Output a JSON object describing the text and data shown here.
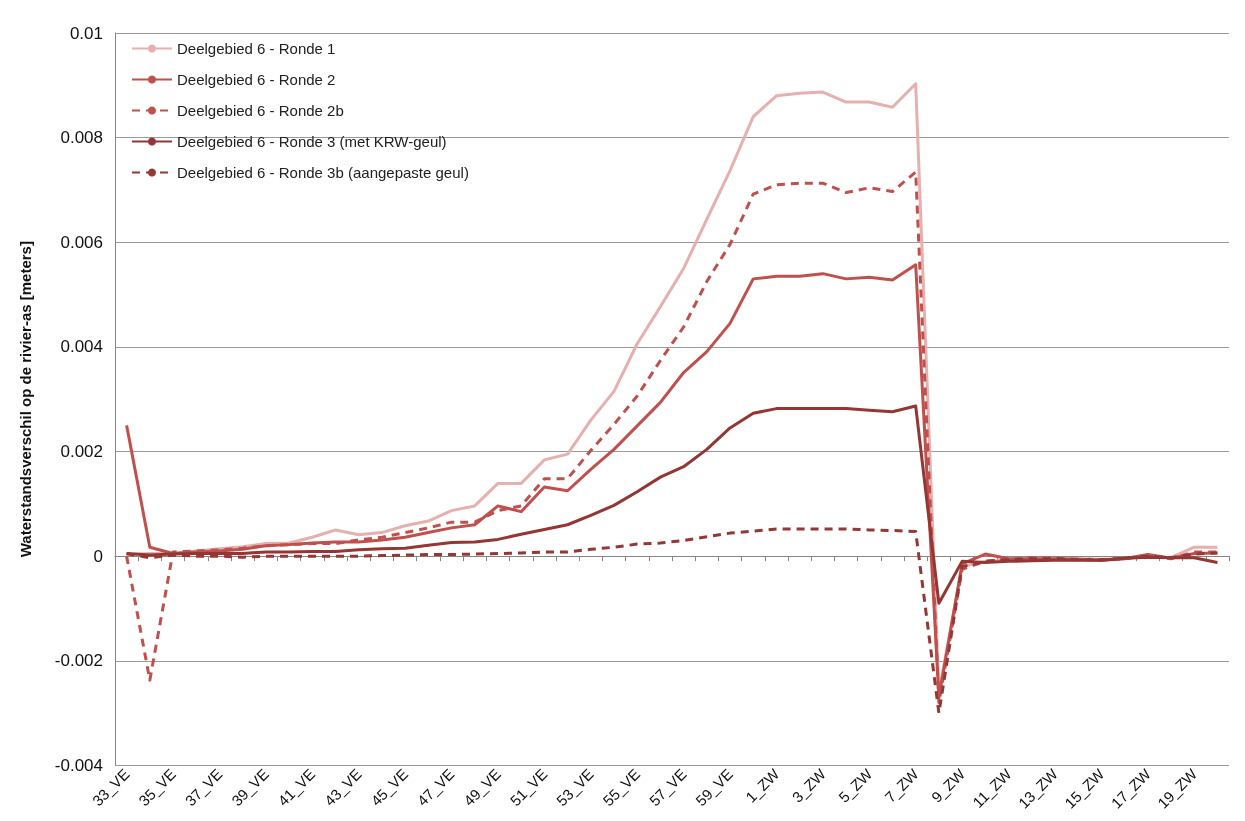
{
  "chart_data": {
    "type": "line",
    "ylabel": "Waterstandsverschil op de rivier-as [meters]",
    "categories": [
      "33_VE",
      null,
      "35_VE",
      null,
      "37_VE",
      null,
      "39_VE",
      null,
      "41_VE",
      null,
      "43_VE",
      null,
      "45_VE",
      null,
      "47_VE",
      null,
      "49_VE",
      null,
      "51_VE",
      null,
      "53_VE",
      null,
      "55_VE",
      null,
      "57_VE",
      null,
      "59_VE",
      null,
      "1_ZW",
      null,
      "3_ZW",
      null,
      "5_ZW",
      null,
      "7_ZW",
      null,
      "9_ZW",
      null,
      "11_ZW",
      null,
      "13_ZW",
      null,
      "15_ZW",
      null,
      "17_ZW",
      null,
      "19_ZW",
      null
    ],
    "series": [
      {
        "name": "Deelgebied 6 - Ronde 1",
        "color": "#e6b0ae",
        "line_style": "solid",
        "values": [
          3e-05,
          5e-05,
          5e-05,
          0.0001,
          0.00014,
          0.00018,
          0.00024,
          0.00025,
          0.00036,
          0.0005,
          0.00041,
          0.00045,
          0.00058,
          0.00067,
          0.00087,
          0.00096,
          0.00139,
          0.00139,
          0.00184,
          0.00195,
          0.0026,
          0.00315,
          0.00406,
          0.00477,
          0.0055,
          0.00644,
          0.00737,
          0.0084,
          0.0088,
          0.00885,
          0.00887,
          0.00868,
          0.00868,
          0.00858,
          0.00903,
          -0.0026,
          -0.0002,
          -0.0001,
          -8e-05,
          -5e-05,
          -5e-05,
          -5e-05,
          -6e-05,
          -5e-05,
          0,
          -3e-05,
          0.00017,
          0.00017
        ]
      },
      {
        "name": "Deelgebied 6 - Ronde 2",
        "color": "#c0504d",
        "line_style": "solid",
        "values": [
          0.0025,
          0.00017,
          5e-05,
          8e-05,
          0.0001,
          0.00013,
          0.0002,
          0.00022,
          0.00025,
          0.00027,
          0.00027,
          0.00031,
          0.00036,
          0.00045,
          0.00054,
          0.0006,
          0.00096,
          0.00085,
          0.00132,
          0.00125,
          0.00166,
          0.00204,
          0.00249,
          0.00294,
          0.00351,
          0.00391,
          0.00445,
          0.0053,
          0.00535,
          0.00535,
          0.0054,
          0.0053,
          0.00533,
          0.00528,
          0.00557,
          -0.0027,
          -0.00015,
          4e-05,
          -5e-05,
          -5e-05,
          -5e-05,
          -6e-05,
          -8e-05,
          -5e-05,
          3e-05,
          -4e-05,
          5e-05,
          6e-05
        ]
      },
      {
        "name": "Deelgebied 6 - Ronde 2b",
        "color": "#c0504d",
        "line_style": "dashed",
        "values": [
          0,
          -0.00237,
          8e-05,
          0.0001,
          0.00012,
          0.00015,
          0.0002,
          0.00022,
          0.00024,
          0.00024,
          0.00031,
          0.00036,
          0.00045,
          0.00054,
          0.00065,
          0.00065,
          0.00087,
          0.00096,
          0.00148,
          0.00148,
          0.00202,
          0.00252,
          0.00306,
          0.00374,
          0.00438,
          0.00525,
          0.00596,
          0.00692,
          0.0071,
          0.00713,
          0.00713,
          0.00695,
          0.00704,
          0.00697,
          0.00734,
          -0.0028,
          -0.00025,
          -0.0001,
          -6e-05,
          -3e-05,
          -4e-05,
          -6e-05,
          -7e-05,
          -5e-05,
          2e-05,
          -5e-05,
          8e-05,
          8e-05
        ]
      },
      {
        "name": "Deelgebied 6 - Ronde 3 (met KRW-geul)",
        "color": "#943634",
        "line_style": "solid",
        "values": [
          5e-05,
          2e-05,
          4e-05,
          5e-05,
          5e-05,
          5e-05,
          8e-05,
          8e-05,
          9e-05,
          9e-05,
          0.00012,
          0.00014,
          0.00015,
          0.00021,
          0.00026,
          0.00027,
          0.00032,
          0.00042,
          0.00051,
          0.0006,
          0.00078,
          0.00097,
          0.00123,
          0.00151,
          0.00171,
          0.00204,
          0.00245,
          0.00273,
          0.00282,
          0.00282,
          0.00282,
          0.00282,
          0.00279,
          0.00276,
          0.00287,
          -0.0009,
          -0.0001,
          -0.00012,
          -0.0001,
          -9e-05,
          -8e-05,
          -8e-05,
          -8e-05,
          -4e-05,
          -2e-05,
          -3e-05,
          -3e-05,
          -0.00012
        ]
      },
      {
        "name": "Deelgebied 6 - Ronde 3b (aangepaste geul)",
        "color": "#953735",
        "line_style": "dashed",
        "values": [
          5e-05,
          -3e-05,
          2e-05,
          0,
          0,
          -2e-05,
          0,
          0,
          0,
          0,
          0,
          1e-05,
          2e-05,
          3e-05,
          3e-05,
          4e-05,
          5e-05,
          6e-05,
          8e-05,
          8e-05,
          0.00013,
          0.00017,
          0.00023,
          0.00025,
          0.0003,
          0.00037,
          0.00044,
          0.00048,
          0.00052,
          0.00052,
          0.00052,
          0.00052,
          0.0005,
          0.00049,
          0.00047,
          -0.003,
          -0.0002,
          -0.0001,
          -7e-05,
          -5e-05,
          -5e-05,
          -7e-05,
          -7e-05,
          -4e-05,
          0,
          -3e-05,
          4e-05,
          6e-05
        ]
      }
    ],
    "ylim": [
      -0.004,
      0.01
    ],
    "yticks": [
      -0.004,
      -0.002,
      0,
      0.002,
      0.004,
      0.006,
      0.008,
      0.01
    ],
    "grid": "y",
    "legend": "top left",
    "marker": "none"
  }
}
